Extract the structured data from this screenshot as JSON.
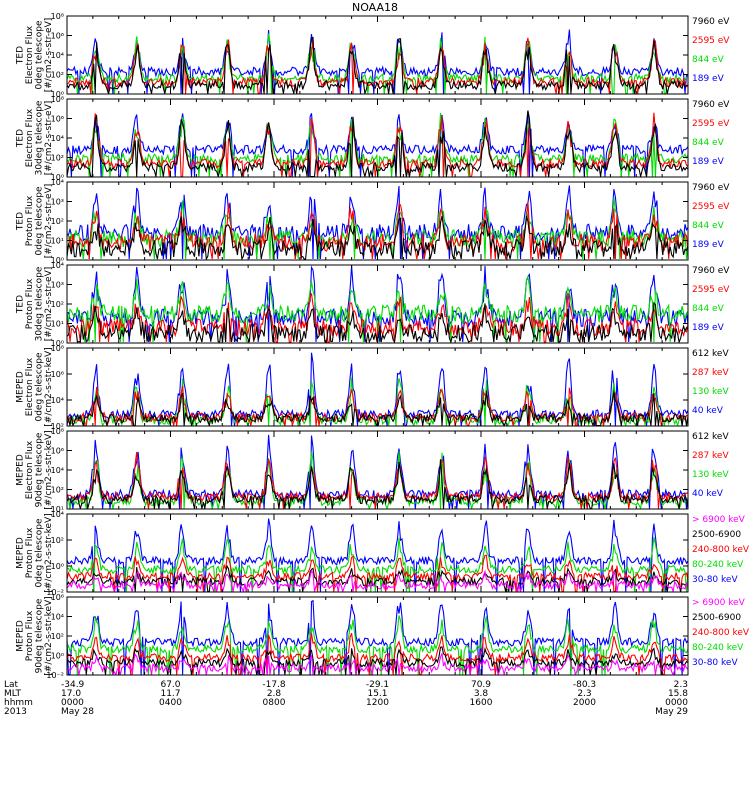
{
  "title": "NOAA18",
  "colors": {
    "blue": "#0000ff",
    "red": "#ff0000",
    "green": "#00dd00",
    "black": "#000000",
    "magenta": "#ff00ff"
  },
  "chart_data": [
    {
      "type": "line",
      "ylabel": [
        "TED",
        "Electron Flux",
        "0deg telescope",
        "[#/cm2-s-str-eV]"
      ],
      "ylog": [
        0,
        8
      ],
      "yticks": [
        "10⁰",
        "10²",
        "10⁴",
        "10⁶",
        "10⁸"
      ],
      "series": [
        {
          "name": "7960 eV",
          "color": "#000000",
          "base": 0.9,
          "amp": 4.8
        },
        {
          "name": "2595 eV",
          "color": "#ff0000",
          "base": 1.2,
          "amp": 4.5
        },
        {
          "name": "844 eV",
          "color": "#00dd00",
          "base": 1.6,
          "amp": 4.0
        },
        {
          "name": "189 eV",
          "color": "#0000ff",
          "base": 2.3,
          "amp": 3.6
        }
      ]
    },
    {
      "type": "line",
      "ylabel": [
        "TED",
        "Electron Flux",
        "30deg telescope",
        "[#/cm2-s-str-eV]"
      ],
      "ylog": [
        0,
        8
      ],
      "yticks": [
        "10⁰",
        "10²",
        "10⁴",
        "10⁶",
        "10⁸"
      ],
      "series": [
        {
          "name": "7960 eV",
          "color": "#000000",
          "base": 1.0,
          "amp": 4.8
        },
        {
          "name": "2595 eV",
          "color": "#ff0000",
          "base": 1.4,
          "amp": 4.5
        },
        {
          "name": "844 eV",
          "color": "#00dd00",
          "base": 1.9,
          "amp": 4.0
        },
        {
          "name": "189 eV",
          "color": "#0000ff",
          "base": 2.8,
          "amp": 3.4
        }
      ]
    },
    {
      "type": "line",
      "ylabel": [
        "TED",
        "Proton Flux",
        "0deg telescope",
        "[#/cm2-s-str-eV]"
      ],
      "ylog": [
        0,
        4
      ],
      "yticks": [
        "10⁰",
        "10¹",
        "10²",
        "10³",
        "10⁴"
      ],
      "series": [
        {
          "name": "7960 eV",
          "color": "#000000",
          "base": 0.6,
          "amp": 1.5
        },
        {
          "name": "2595 eV",
          "color": "#ff0000",
          "base": 0.9,
          "amp": 1.6
        },
        {
          "name": "844 eV",
          "color": "#00dd00",
          "base": 1.1,
          "amp": 1.6
        },
        {
          "name": "189 eV",
          "color": "#0000ff",
          "base": 1.4,
          "amp": 2.2
        }
      ]
    },
    {
      "type": "line",
      "ylabel": [
        "TED",
        "Proton Flux",
        "30deg telescope",
        "[#/cm2-s-str-eV]"
      ],
      "ylog": [
        0,
        4
      ],
      "yticks": [
        "10⁰",
        "10¹",
        "10²",
        "10³",
        "10⁴"
      ],
      "series": [
        {
          "name": "7960 eV",
          "color": "#000000",
          "base": 0.5,
          "amp": 1.2
        },
        {
          "name": "2595 eV",
          "color": "#ff0000",
          "base": 0.8,
          "amp": 1.4
        },
        {
          "name": "844 eV",
          "color": "#00dd00",
          "base": 1.5,
          "amp": 1.6
        },
        {
          "name": "189 eV",
          "color": "#0000ff",
          "base": 1.3,
          "amp": 2.4
        }
      ]
    },
    {
      "type": "line",
      "ylabel": [
        "MEPED",
        "Electron Flux",
        "0deg telescope",
        "[#/cm2-s-str-keV]"
      ],
      "ylog": [
        1,
        9
      ],
      "yticks": [
        "10²",
        "10⁴",
        "10⁶",
        "10⁸"
      ],
      "series": [
        {
          "name": "612 keV",
          "color": "#000000",
          "base": 1.8,
          "amp": 2.5
        },
        {
          "name": "287 keV",
          "color": "#ff0000",
          "base": 1.9,
          "amp": 3.0
        },
        {
          "name": "130 keV",
          "color": "#00dd00",
          "base": 1.6,
          "amp": 4.0
        },
        {
          "name": "40 keV",
          "color": "#0000ff",
          "base": 2.2,
          "amp": 5.2
        }
      ]
    },
    {
      "type": "line",
      "ylabel": [
        "MEPED",
        "Electron Flux",
        "90deg telescope",
        "[#/cm2-s-str-keV]"
      ],
      "ylog": [
        1,
        9
      ],
      "yticks": [
        "10¹",
        "10²",
        "10⁴",
        "10⁶",
        "10⁸"
      ],
      "series": [
        {
          "name": "612 keV",
          "color": "#000000",
          "base": 2.0,
          "amp": 3.5
        },
        {
          "name": "287 keV",
          "color": "#ff0000",
          "base": 2.2,
          "amp": 4.0
        },
        {
          "name": "130 keV",
          "color": "#00dd00",
          "base": 1.8,
          "amp": 4.5
        },
        {
          "name": "40 keV",
          "color": "#0000ff",
          "base": 2.5,
          "amp": 5.3
        }
      ]
    },
    {
      "type": "line",
      "ylabel": [
        "MEPED",
        "Proton Flux",
        "0deg telescope",
        "[#/cm2-s-str-keV]"
      ],
      "ylog": [
        -3,
        6
      ],
      "yticks": [
        "10⁻²",
        "10⁰",
        "10²",
        "10⁴"
      ],
      "series": [
        {
          "name": "> 6900 keV",
          "color": "#ff00ff",
          "base": -2.2,
          "amp": 1.2
        },
        {
          "name": "2500-6900",
          "color": "#000000",
          "base": -1.8,
          "amp": 1.4
        },
        {
          "name": "240-800 keV",
          "color": "#ff0000",
          "base": -1.2,
          "amp": 2.2
        },
        {
          "name": "80-240 keV",
          "color": "#00dd00",
          "base": -0.4,
          "amp": 3.2
        },
        {
          "name": "30-80 keV",
          "color": "#0000ff",
          "base": 0.6,
          "amp": 4.2
        }
      ]
    },
    {
      "type": "line",
      "ylabel": [
        "MEPED",
        "Proton Flux",
        "90deg telescope",
        "[#/cm2-s-str-keV]"
      ],
      "ylog": [
        -3,
        6
      ],
      "yticks": [
        "10⁻²",
        "10⁰",
        "10²",
        "10⁴",
        "10⁶"
      ],
      "series": [
        {
          "name": "> 6900 keV",
          "color": "#ff00ff",
          "base": -2.2,
          "amp": 1.3
        },
        {
          "name": "2500-6900",
          "color": "#000000",
          "base": -1.6,
          "amp": 1.5
        },
        {
          "name": "240-800 keV",
          "color": "#ff0000",
          "base": -1.0,
          "amp": 2.4
        },
        {
          "name": "80-240 keV",
          "color": "#00dd00",
          "base": 0.0,
          "amp": 3.5
        },
        {
          "name": "30-80 keV",
          "color": "#0000ff",
          "base": 0.8,
          "amp": 4.4
        }
      ]
    }
  ],
  "x_axis": {
    "row_labels": [
      "Lat",
      "MLT",
      "hhmm",
      "2013"
    ],
    "hours": [
      0,
      4,
      8,
      12,
      16,
      20,
      24
    ],
    "ticks": [
      {
        "lat": "-34.9",
        "mlt": "17.0",
        "hhmm": "0000",
        "date": "May 28"
      },
      {
        "lat": "67.0",
        "mlt": "11.7",
        "hhmm": "0400",
        "date": ""
      },
      {
        "lat": "-17.8",
        "mlt": "2.8",
        "hhmm": "0800",
        "date": ""
      },
      {
        "lat": "-29.1",
        "mlt": "15.1",
        "hhmm": "1200",
        "date": ""
      },
      {
        "lat": "70.9",
        "mlt": "3.8",
        "hhmm": "1600",
        "date": ""
      },
      {
        "lat": "-80.3",
        "mlt": "2.3",
        "hhmm": "2000",
        "date": ""
      },
      {
        "lat": "2.3",
        "mlt": "15.8",
        "hhmm": "0000",
        "date": "May 29"
      }
    ]
  }
}
